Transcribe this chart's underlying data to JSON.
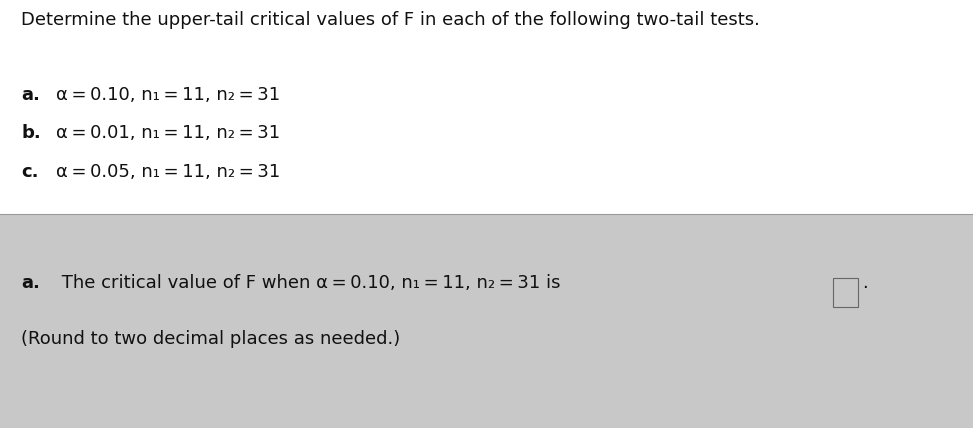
{
  "bg_color": "#c8c8c8",
  "top_section_bg": "#e8e8e8",
  "bottom_section_bg": "#c8c8c8",
  "title": "Determine the upper-tail critical values of F in each of the following two-tail tests.",
  "label_a": "a.",
  "label_b": "b.",
  "label_c": "c.",
  "text_a": "α = 0.10, n₁ = 11, n₂ = 31",
  "text_b": "α = 0.01, n₁ = 11, n₂ = 31",
  "text_c": "α = 0.05, n₁ = 11, n₂ = 31",
  "bottom_bold": "a.",
  "bottom_text": " The critical value of F when α = 0.10, n₁ = 11, n₂ = 31 is",
  "bottom_line2": "(Round to two decimal places as needed.)",
  "divider_color": "#999999",
  "text_color": "#111111",
  "title_fontsize": 13.0,
  "body_fontsize": 13.0
}
